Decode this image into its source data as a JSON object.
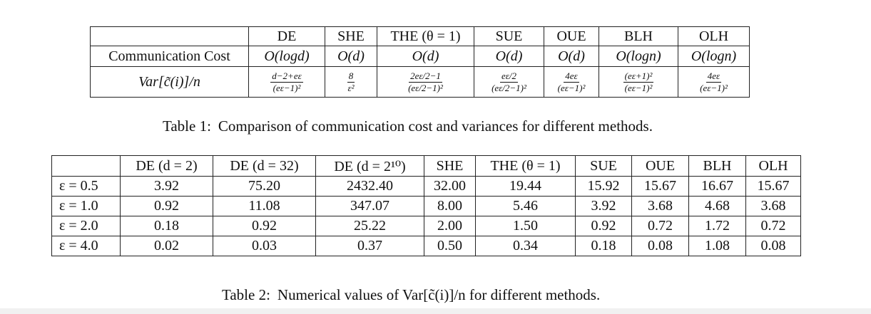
{
  "table1": {
    "header": [
      "",
      "DE",
      "SHE",
      "THE (θ = 1)",
      "SUE",
      "OUE",
      "BLH",
      "OLH"
    ],
    "comm_row": {
      "label": "Communication Cost",
      "cells": [
        "O(logd)",
        "O(d)",
        "O(d)",
        "O(d)",
        "O(d)",
        "O(logn)",
        "O(logn)"
      ]
    },
    "var_row": {
      "label": "Var[c̃(i)]/n",
      "cells": [
        {
          "num": "d−2+eε",
          "den": "(eε−1)²"
        },
        {
          "num": "8",
          "den": "ε²"
        },
        {
          "num": "2eε/2−1",
          "den": "(eε/2−1)²"
        },
        {
          "num": "eε/2",
          "den": "(eε/2−1)²"
        },
        {
          "num": "4eε",
          "den": "(eε−1)²"
        },
        {
          "num": "(eε+1)²",
          "den": "(eε−1)²"
        },
        {
          "num": "4eε",
          "den": "(eε−1)²"
        }
      ]
    },
    "caption_label": "Table 1:",
    "caption_text": "Comparison of communication cost and variances for different methods."
  },
  "table2": {
    "header": [
      "",
      "DE (d = 2)",
      "DE (d = 32)",
      "DE (d = 2¹⁰)",
      "SHE",
      "THE (θ = 1)",
      "SUE",
      "OUE",
      "BLH",
      "OLH"
    ],
    "rows": [
      {
        "label": "ε = 0.5",
        "values": [
          "3.92",
          "75.20",
          "2432.40",
          "32.00",
          "19.44",
          "15.92",
          "15.67",
          "16.67",
          "15.67"
        ]
      },
      {
        "label": "ε = 1.0",
        "values": [
          "0.92",
          "11.08",
          "347.07",
          "8.00",
          "5.46",
          "3.92",
          "3.68",
          "4.68",
          "3.68"
        ]
      },
      {
        "label": "ε = 2.0",
        "values": [
          "0.18",
          "0.92",
          "25.22",
          "2.00",
          "1.50",
          "0.92",
          "0.72",
          "1.72",
          "0.72"
        ]
      },
      {
        "label": "ε = 4.0",
        "values": [
          "0.02",
          "0.03",
          "0.37",
          "0.50",
          "0.34",
          "0.18",
          "0.08",
          "1.08",
          "0.08"
        ]
      }
    ],
    "caption_label": "Table 2:",
    "caption_text": "Numerical values of Var[c̃(i)]/n for different methods."
  }
}
